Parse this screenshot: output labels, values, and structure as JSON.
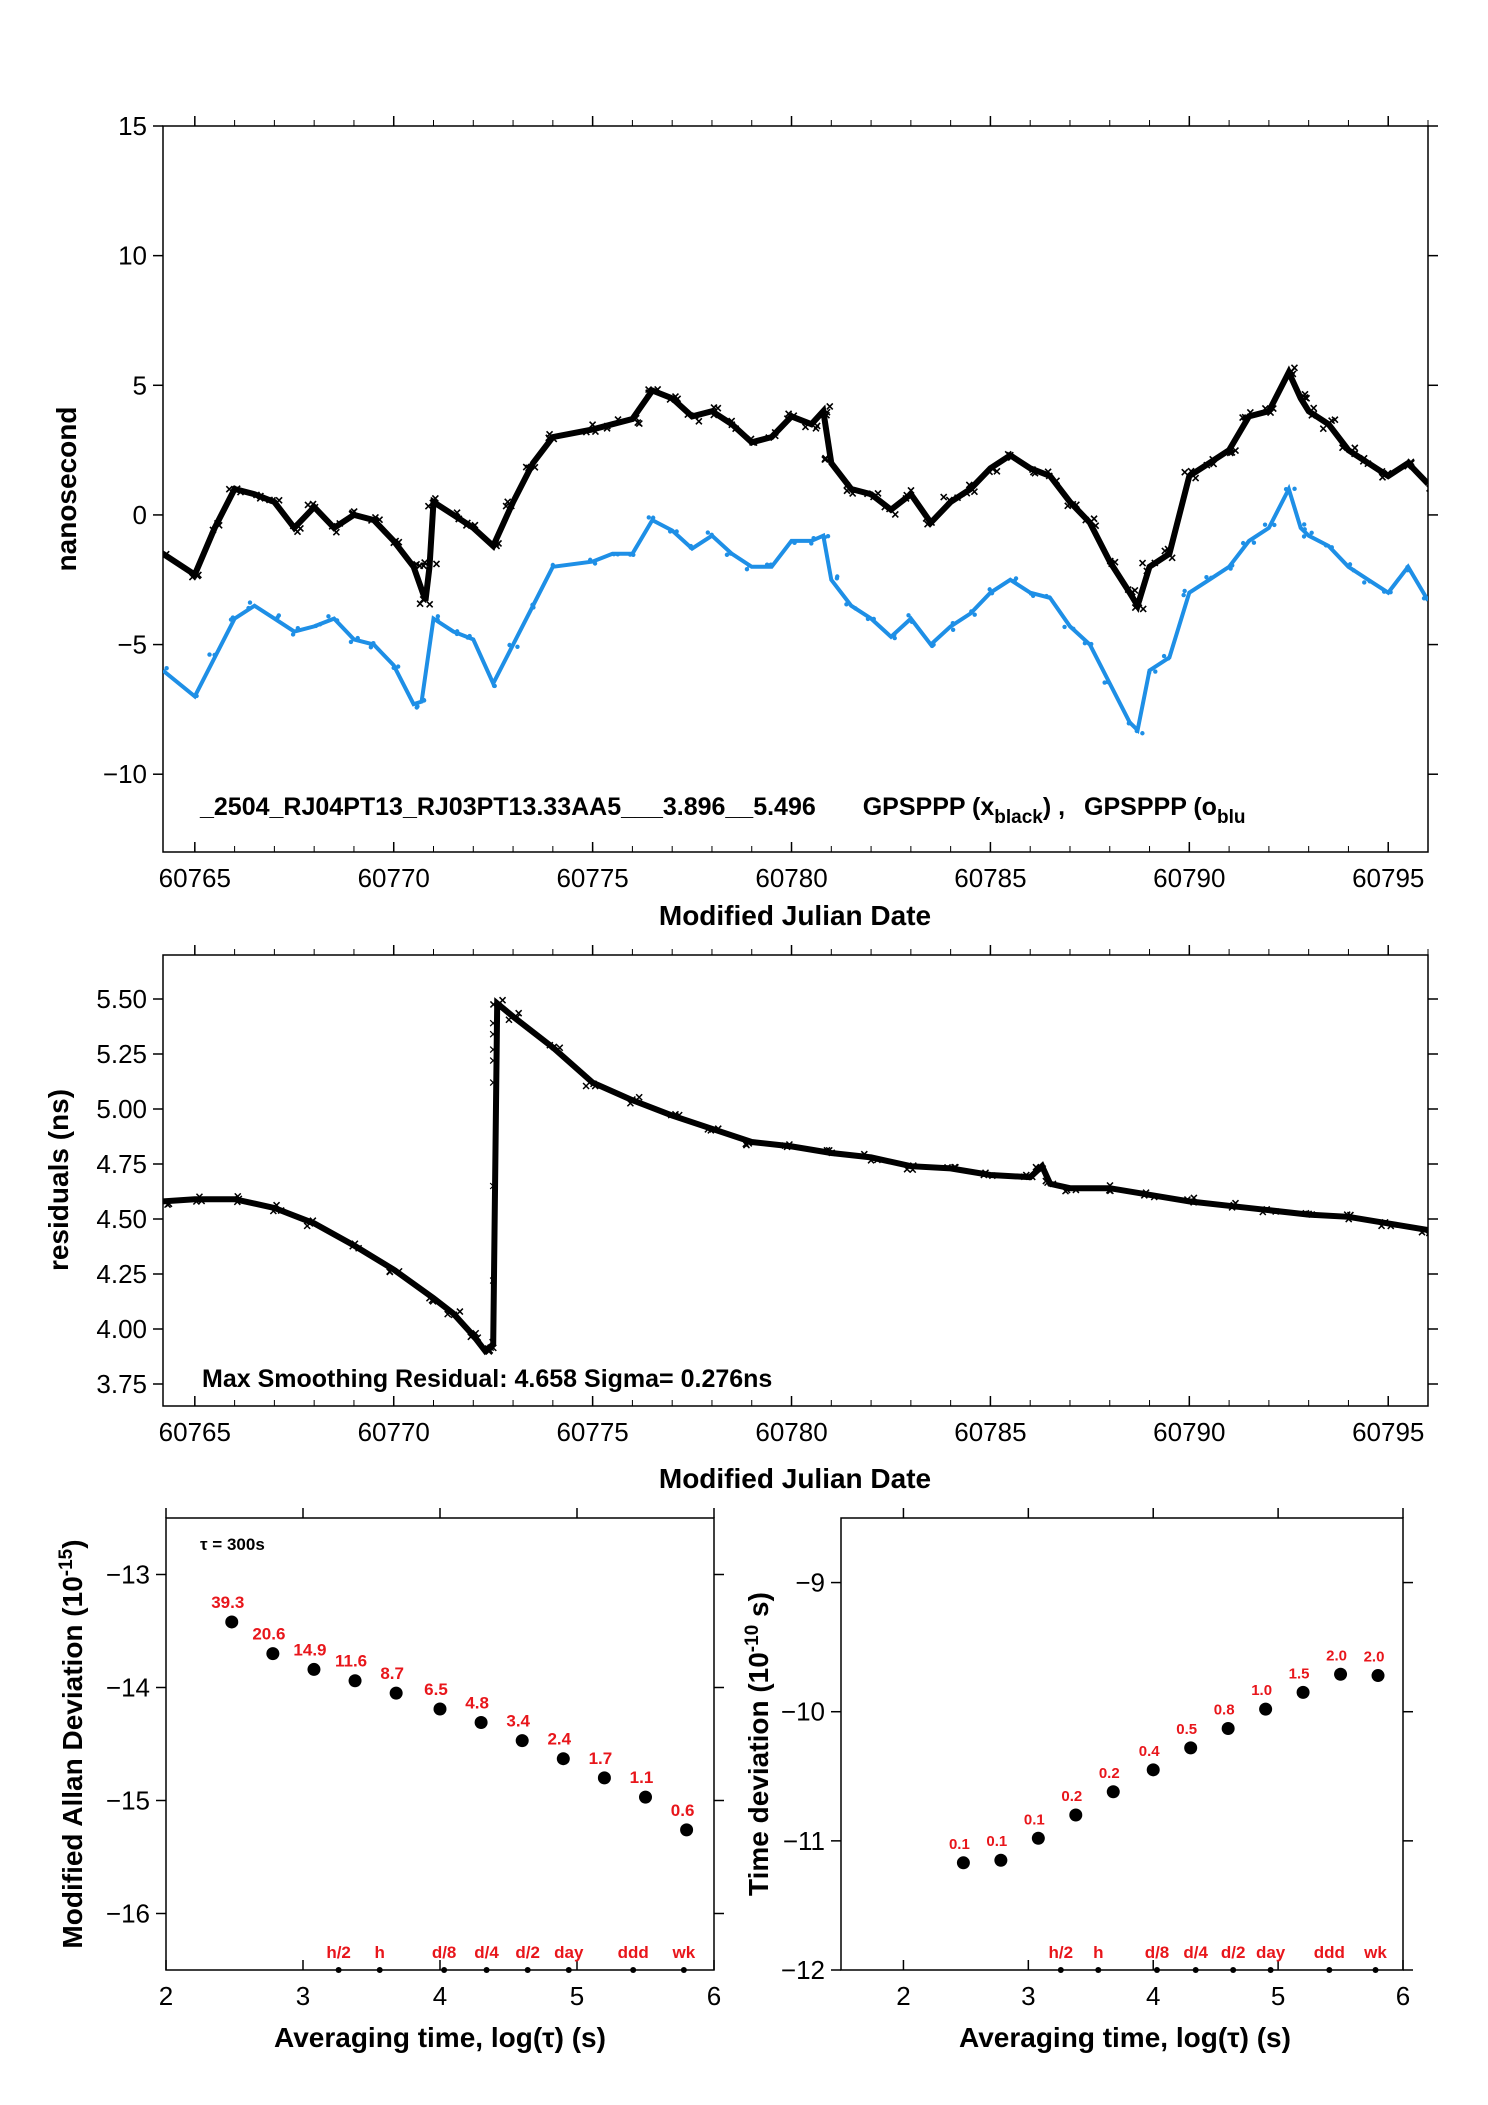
{
  "chart_data": [
    {
      "type": "scatter",
      "xlabel": "Modified Julian Date",
      "ylabel": "nanosecond",
      "xlim": [
        60764.2,
        60796
      ],
      "ylim": [
        -13,
        15
      ],
      "xticks": [
        "60765",
        "60770",
        "60775",
        "60780",
        "60785",
        "60790",
        "60795"
      ],
      "yticks": [
        "−10",
        "−5",
        "0",
        "5",
        "10",
        "15"
      ],
      "annotation": {
        "id": "_2504_RJ04PT13_RJ03PT13.33AA5___3.896__5.496",
        "legend_a": "GPSPPP (x",
        "legend_a_sub": "black",
        "legend_a_end": ") ,",
        "legend_b": "GPSPPP (o",
        "legend_b_sub": "blu"
      },
      "series": [
        {
          "color": "#000000",
          "marker": "x",
          "points": [
            [
              60764.2,
              -1.5
            ],
            [
              60765.0,
              -2.3
            ],
            [
              60765.5,
              -0.5
            ],
            [
              60766.0,
              1.0
            ],
            [
              60766.5,
              0.8
            ],
            [
              60767.0,
              0.5
            ],
            [
              60767.5,
              -0.5
            ],
            [
              60768.0,
              0.3
            ],
            [
              60768.5,
              -0.5
            ],
            [
              60769.0,
              0.0
            ],
            [
              60769.5,
              -0.2
            ],
            [
              60770.0,
              -1.0
            ],
            [
              60770.5,
              -2.0
            ],
            [
              60770.8,
              -3.3
            ],
            [
              60770.9,
              -2.0
            ],
            [
              60771.0,
              0.5
            ],
            [
              60771.5,
              0.0
            ],
            [
              60772.0,
              -0.5
            ],
            [
              60772.5,
              -1.2
            ],
            [
              60773.0,
              0.5
            ],
            [
              60773.5,
              2.0
            ],
            [
              60774.0,
              3.0
            ],
            [
              60775.0,
              3.3
            ],
            [
              60775.5,
              3.5
            ],
            [
              60776.0,
              3.7
            ],
            [
              60776.5,
              4.8
            ],
            [
              60777.0,
              4.5
            ],
            [
              60777.5,
              3.8
            ],
            [
              60778.0,
              4.0
            ],
            [
              60778.5,
              3.5
            ],
            [
              60779.0,
              2.8
            ],
            [
              60779.5,
              3.0
            ],
            [
              60780.0,
              3.8
            ],
            [
              60780.5,
              3.5
            ],
            [
              60780.8,
              4.0
            ],
            [
              60781.0,
              2.0
            ],
            [
              60781.5,
              1.0
            ],
            [
              60782.0,
              0.8
            ],
            [
              60782.5,
              0.2
            ],
            [
              60783.0,
              0.8
            ],
            [
              60783.5,
              -0.3
            ],
            [
              60784.0,
              0.5
            ],
            [
              60784.5,
              1.0
            ],
            [
              60785.0,
              1.8
            ],
            [
              60785.5,
              2.3
            ],
            [
              60786.0,
              1.8
            ],
            [
              60786.5,
              1.5
            ],
            [
              60787.0,
              0.5
            ],
            [
              60787.5,
              -0.3
            ],
            [
              60788.0,
              -1.8
            ],
            [
              60788.5,
              -3.0
            ],
            [
              60788.7,
              -3.5
            ],
            [
              60789.0,
              -2.0
            ],
            [
              60789.5,
              -1.5
            ],
            [
              60790.0,
              1.5
            ],
            [
              60790.5,
              2.0
            ],
            [
              60791.0,
              2.5
            ],
            [
              60791.5,
              3.8
            ],
            [
              60792.0,
              4.0
            ],
            [
              60792.5,
              5.5
            ],
            [
              60792.8,
              4.5
            ],
            [
              60793.0,
              4.0
            ],
            [
              60793.5,
              3.5
            ],
            [
              60794.0,
              2.5
            ],
            [
              60794.5,
              2.0
            ],
            [
              60795.0,
              1.5
            ],
            [
              60795.5,
              2.0
            ],
            [
              60796.0,
              1.2
            ]
          ]
        },
        {
          "color": "#1e8fe6",
          "marker": "o",
          "points": [
            [
              60764.2,
              -6.0
            ],
            [
              60765.0,
              -7.0
            ],
            [
              60765.5,
              -5.5
            ],
            [
              60766.0,
              -4.0
            ],
            [
              60766.5,
              -3.5
            ],
            [
              60767.0,
              -4.0
            ],
            [
              60767.5,
              -4.5
            ],
            [
              60768.0,
              -4.3
            ],
            [
              60768.5,
              -4.0
            ],
            [
              60769.0,
              -4.8
            ],
            [
              60769.5,
              -5.0
            ],
            [
              60770.0,
              -5.8
            ],
            [
              60770.5,
              -7.3
            ],
            [
              60770.7,
              -7.2
            ],
            [
              60771.0,
              -4.0
            ],
            [
              60771.5,
              -4.5
            ],
            [
              60772.0,
              -4.8
            ],
            [
              60772.5,
              -6.5
            ],
            [
              60773.0,
              -5.0
            ],
            [
              60773.5,
              -3.5
            ],
            [
              60774.0,
              -2.0
            ],
            [
              60775.0,
              -1.8
            ],
            [
              60775.5,
              -1.5
            ],
            [
              60776.0,
              -1.5
            ],
            [
              60776.5,
              -0.2
            ],
            [
              60777.0,
              -0.6
            ],
            [
              60777.5,
              -1.3
            ],
            [
              60778.0,
              -0.8
            ],
            [
              60778.5,
              -1.5
            ],
            [
              60779.0,
              -2.0
            ],
            [
              60779.5,
              -2.0
            ],
            [
              60780.0,
              -1.0
            ],
            [
              60780.5,
              -1.0
            ],
            [
              60780.8,
              -0.8
            ],
            [
              60781.0,
              -2.5
            ],
            [
              60781.5,
              -3.5
            ],
            [
              60782.0,
              -4.0
            ],
            [
              60782.5,
              -4.7
            ],
            [
              60783.0,
              -4.0
            ],
            [
              60783.5,
              -5.0
            ],
            [
              60784.0,
              -4.3
            ],
            [
              60784.5,
              -3.8
            ],
            [
              60785.0,
              -3.0
            ],
            [
              60785.5,
              -2.5
            ],
            [
              60786.0,
              -3.0
            ],
            [
              60786.5,
              -3.2
            ],
            [
              60787.0,
              -4.3
            ],
            [
              60787.5,
              -5.0
            ],
            [
              60788.0,
              -6.5
            ],
            [
              60788.5,
              -8.0
            ],
            [
              60788.7,
              -8.3
            ],
            [
              60789.0,
              -6.0
            ],
            [
              60789.5,
              -5.5
            ],
            [
              60790.0,
              -3.0
            ],
            [
              60790.5,
              -2.5
            ],
            [
              60791.0,
              -2.0
            ],
            [
              60791.5,
              -1.0
            ],
            [
              60792.0,
              -0.5
            ],
            [
              60792.5,
              1.0
            ],
            [
              60792.8,
              -0.5
            ],
            [
              60793.0,
              -0.8
            ],
            [
              60793.5,
              -1.2
            ],
            [
              60794.0,
              -2.0
            ],
            [
              60794.5,
              -2.5
            ],
            [
              60795.0,
              -3.0
            ],
            [
              60795.5,
              -2.0
            ],
            [
              60796.0,
              -3.3
            ]
          ]
        }
      ]
    },
    {
      "type": "scatter",
      "xlabel": "Modified Julian Date",
      "ylabel": "residuals (ns)",
      "xlim": [
        60764.2,
        60796
      ],
      "ylim": [
        3.65,
        5.7
      ],
      "xticks": [
        "60765",
        "60770",
        "60775",
        "60780",
        "60785",
        "60790",
        "60795"
      ],
      "yticks": [
        "3.75",
        "4.00",
        "4.25",
        "4.50",
        "4.75",
        "5.00",
        "5.25",
        "5.50"
      ],
      "annotation": "Max Smoothing Residual: 4.658  Sigma= 0.276ns",
      "series": [
        {
          "color": "#000000",
          "marker": "x",
          "points": [
            [
              60764.2,
              4.58
            ],
            [
              60765.0,
              4.59
            ],
            [
              60766.0,
              4.59
            ],
            [
              60767.0,
              4.55
            ],
            [
              60768.0,
              4.48
            ],
            [
              60769.0,
              4.38
            ],
            [
              60770.0,
              4.27
            ],
            [
              60771.0,
              4.14
            ],
            [
              60771.5,
              4.07
            ],
            [
              60772.0,
              3.97
            ],
            [
              60772.3,
              3.9
            ],
            [
              60772.5,
              3.93
            ],
            [
              60772.6,
              5.48
            ],
            [
              60773.0,
              5.42
            ],
            [
              60774.0,
              5.28
            ],
            [
              60775.0,
              5.12
            ],
            [
              60776.0,
              5.04
            ],
            [
              60777.0,
              4.97
            ],
            [
              60778.0,
              4.91
            ],
            [
              60779.0,
              4.85
            ],
            [
              60780.0,
              4.83
            ],
            [
              60781.0,
              4.8
            ],
            [
              60782.0,
              4.78
            ],
            [
              60783.0,
              4.74
            ],
            [
              60784.0,
              4.73
            ],
            [
              60785.0,
              4.7
            ],
            [
              60786.0,
              4.69
            ],
            [
              60786.3,
              4.74
            ],
            [
              60786.5,
              4.66
            ],
            [
              60787.0,
              4.64
            ],
            [
              60788.0,
              4.64
            ],
            [
              60789.0,
              4.61
            ],
            [
              60790.0,
              4.58
            ],
            [
              60791.0,
              4.56
            ],
            [
              60792.0,
              4.54
            ],
            [
              60793.0,
              4.52
            ],
            [
              60794.0,
              4.51
            ],
            [
              60795.0,
              4.48
            ],
            [
              60796.0,
              4.45
            ]
          ],
          "outliers": [
            [
              60772.5,
              4.22
            ],
            [
              60772.5,
              4.65
            ],
            [
              60772.5,
              5.12
            ],
            [
              60772.5,
              5.22
            ],
            [
              60772.5,
              5.27
            ],
            [
              60772.5,
              5.34
            ],
            [
              60772.5,
              5.39
            ]
          ]
        }
      ]
    },
    {
      "type": "scatter",
      "xlabel": "Averaging time, log(τ) (s)",
      "ylabel": "Modified Allan Deviation (10",
      "ylabel_sup": "-15",
      "ylabel_end": ")",
      "xlim": [
        2,
        6
      ],
      "ylim": [
        -16.5,
        -12.5
      ],
      "xticks": [
        "2",
        "3",
        "4",
        "5",
        "6"
      ],
      "yticks": [
        "−13",
        "−14",
        "−15",
        "−16"
      ],
      "tau_note": "τ = 300s",
      "x": [
        2.48,
        2.78,
        3.08,
        3.38,
        3.68,
        4.0,
        4.3,
        4.6,
        4.9,
        5.2,
        5.5,
        5.8
      ],
      "y": [
        -13.42,
        -13.7,
        -13.84,
        -13.94,
        -14.05,
        -14.19,
        -14.31,
        -14.47,
        -14.63,
        -14.8,
        -14.97,
        -15.26
      ],
      "point_labels": [
        "39.3",
        "20.6",
        "14.9",
        "11.6",
        "8.7",
        "6.5",
        "4.8",
        "3.4",
        "2.4",
        "1.7",
        "1.1",
        "0.6"
      ],
      "time_markers": [
        {
          "label": "h/2",
          "x": 3.26
        },
        {
          "label": "h",
          "x": 3.56
        },
        {
          "label": "d/8",
          "x": 4.03
        },
        {
          "label": "d/4",
          "x": 4.34
        },
        {
          "label": "d/2",
          "x": 4.64
        },
        {
          "label": "day",
          "x": 4.94
        },
        {
          "label": "ddd",
          "x": 5.41
        },
        {
          "label": "wk",
          "x": 5.78
        }
      ]
    },
    {
      "type": "scatter",
      "xlabel": "Averaging time, log(τ) (s)",
      "ylabel": "Time deviation (10",
      "ylabel_sup": "-10",
      "ylabel_end": " s)",
      "xlim": [
        1.5,
        6
      ],
      "ylim": [
        -12,
        -8.5
      ],
      "xticks": [
        "2",
        "3",
        "4",
        "5",
        "6"
      ],
      "yticks": [
        "−9",
        "−10",
        "−11",
        "−12"
      ],
      "x": [
        2.48,
        2.78,
        3.08,
        3.38,
        3.68,
        4.0,
        4.3,
        4.6,
        4.9,
        5.2,
        5.5,
        5.8
      ],
      "y": [
        -11.17,
        -11.15,
        -10.98,
        -10.8,
        -10.62,
        -10.45,
        -10.28,
        -10.13,
        -9.98,
        -9.85,
        -9.71,
        -9.72
      ],
      "point_labels": [
        "0.1",
        "0.1",
        "0.1",
        "0.2",
        "0.2",
        "0.4",
        "0.5",
        "0.8",
        "1.0",
        "1.5",
        "2.0",
        "2.0"
      ],
      "time_markers": [
        {
          "label": "h/2",
          "x": 3.26
        },
        {
          "label": "h",
          "x": 3.56
        },
        {
          "label": "d/8",
          "x": 4.03
        },
        {
          "label": "d/4",
          "x": 4.34
        },
        {
          "label": "d/2",
          "x": 4.64
        },
        {
          "label": "day",
          "x": 4.94
        },
        {
          "label": "ddd",
          "x": 5.41
        },
        {
          "label": "wk",
          "x": 5.78
        }
      ]
    }
  ]
}
